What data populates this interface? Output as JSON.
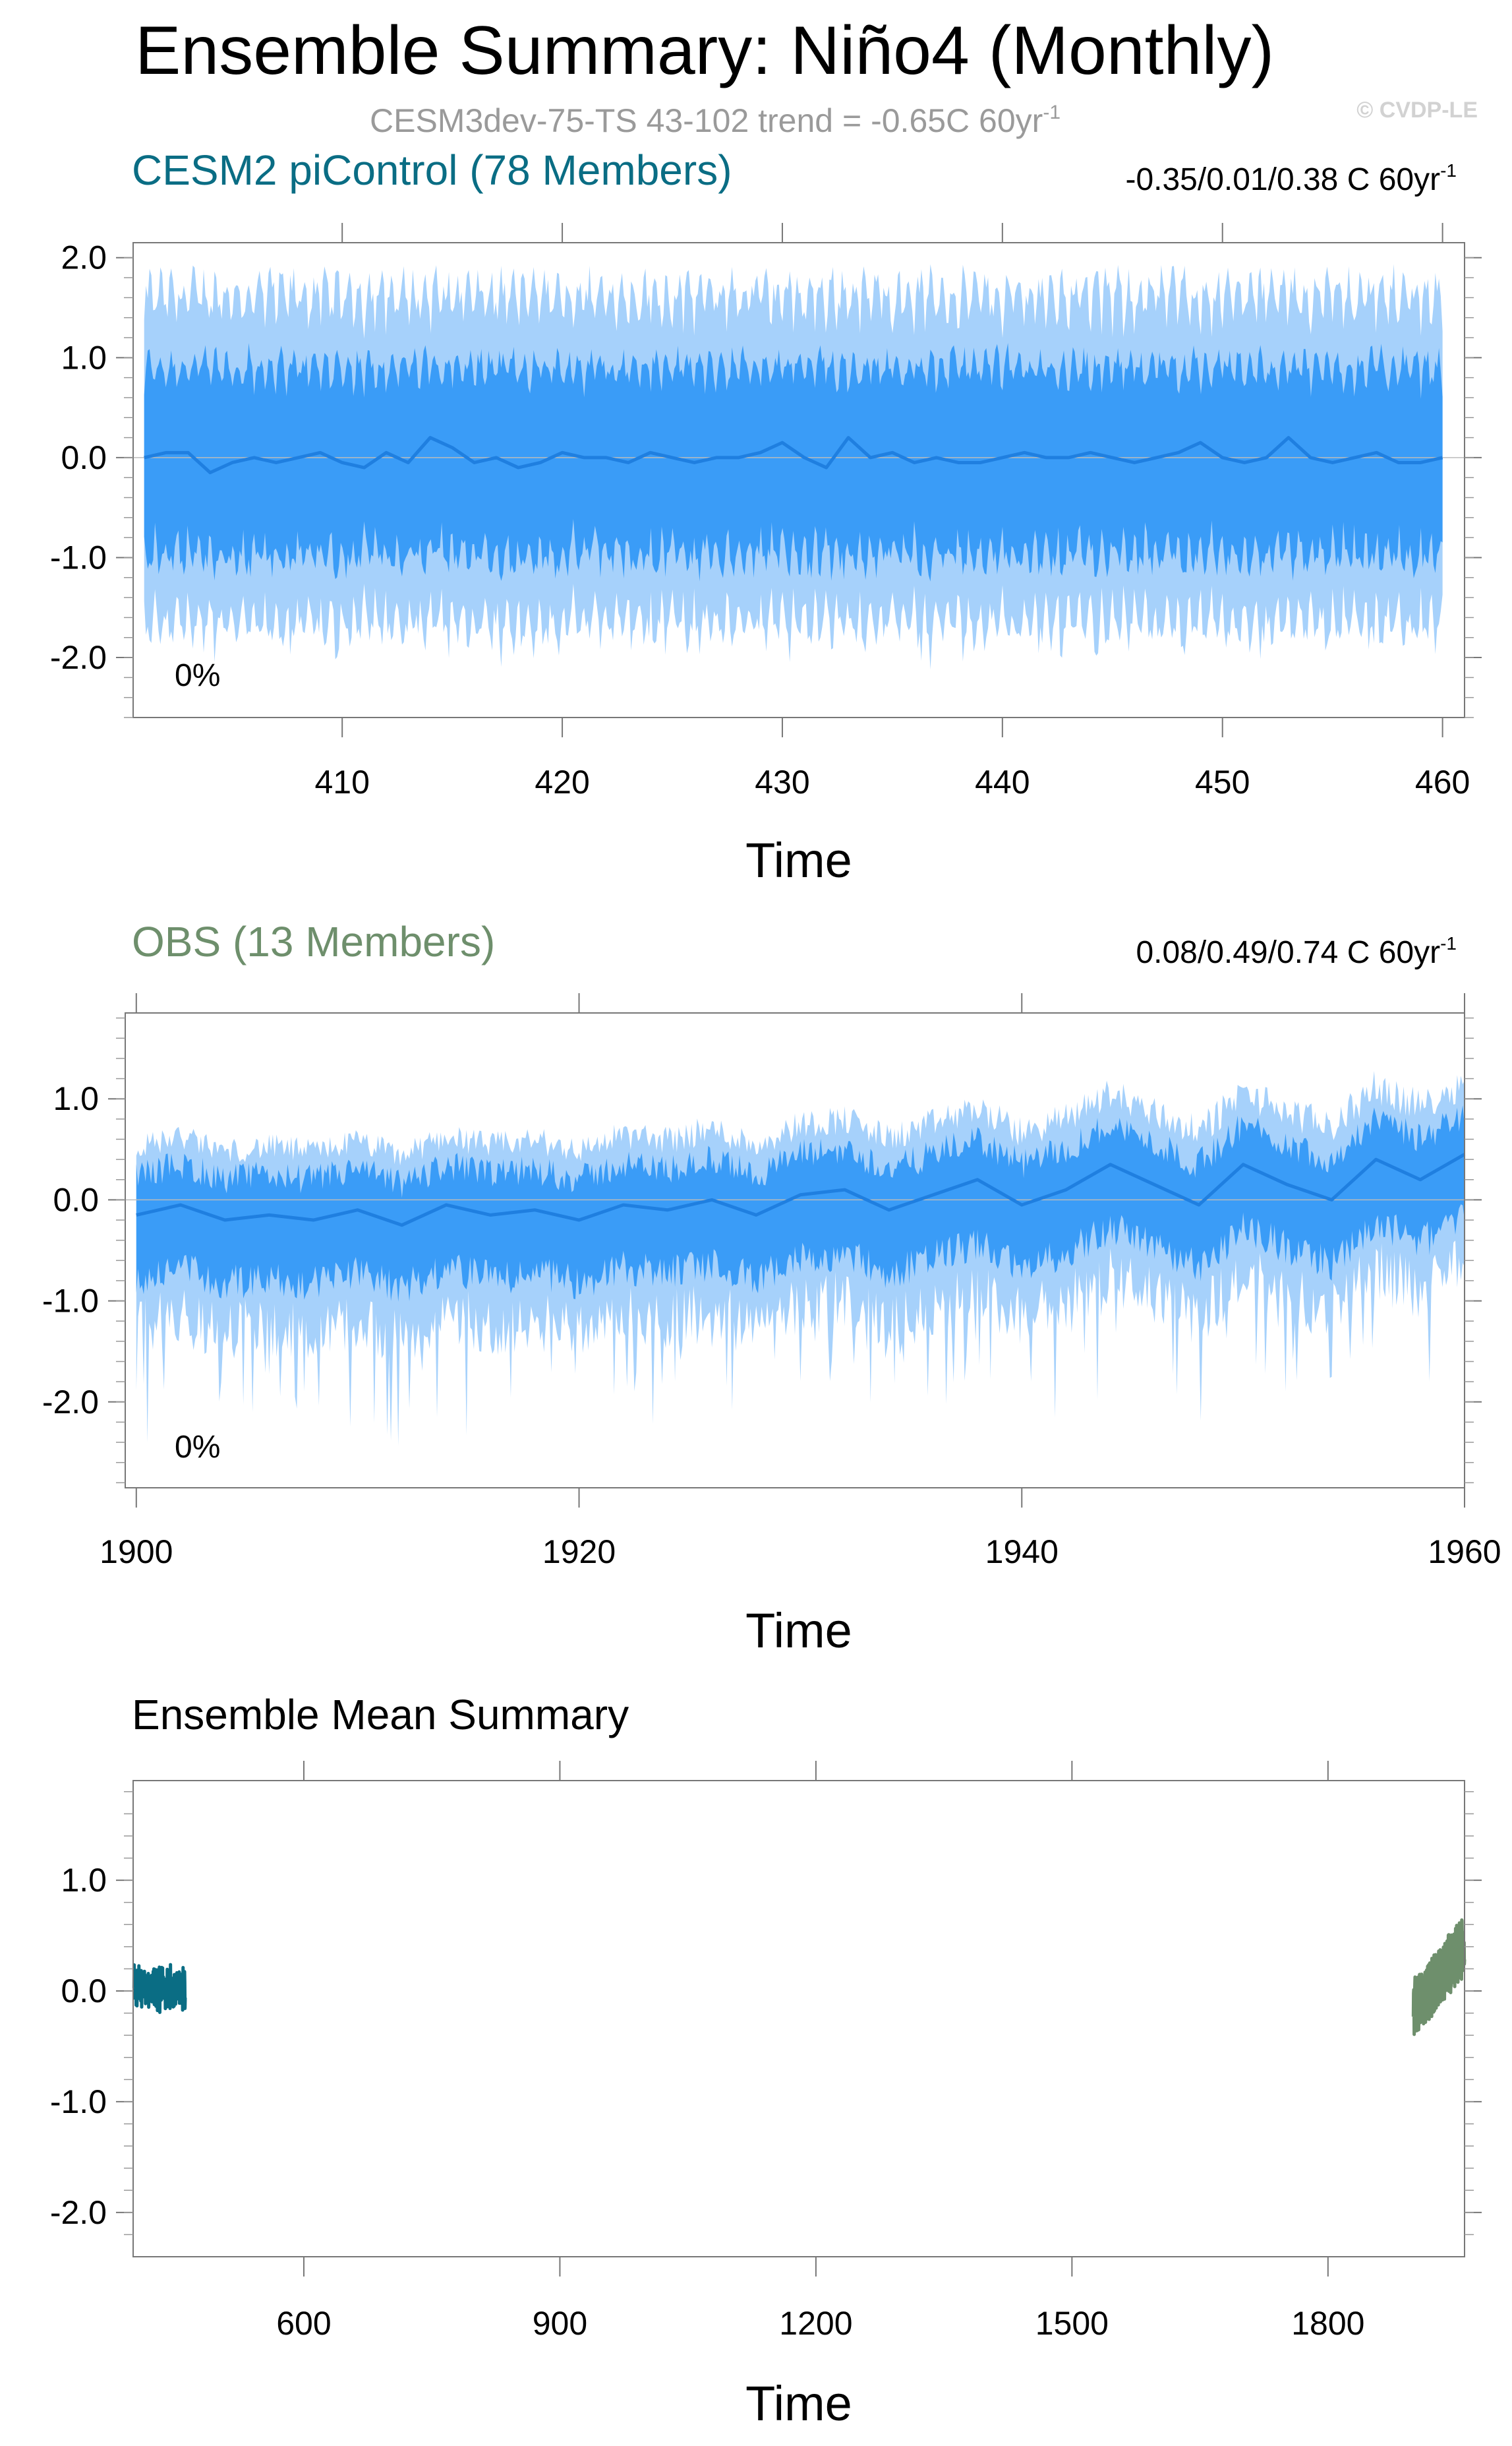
{
  "title": "Ensemble Summary: Niño4 (Monthly)",
  "subtitle": "CESM3dev-75-TS 43-102 trend = -0.65C 60yr",
  "subtitle_sup": "-1",
  "copyright": "© CVDP-LE",
  "colors": {
    "band_outer": "#a6d1fb",
    "band_inner": "#3a9cf7",
    "mean_line": "#1f7fe0",
    "cesm_label": "#0a6d84",
    "obs_label": "#6e8f6c"
  },
  "chart_data": [
    {
      "type": "area",
      "title": "CESM2 piControl (78 Members)",
      "stat_text": "-0.35/0.01/0.38 C 60yr",
      "stat_sup": "-1",
      "percent_label": "0%",
      "xlabel": "Time",
      "xlim": [
        400.5,
        461
      ],
      "ylim": [
        -2.6,
        2.15
      ],
      "xticks": [
        410,
        420,
        430,
        440,
        450,
        460
      ],
      "yticks": [
        2.0,
        1.0,
        0.0,
        -1.0,
        -2.0
      ],
      "ytick_labels": [
        "2.0",
        "1.0",
        "0.0",
        "-1.0",
        "-2.0"
      ],
      "series": [
        {
          "x": [
            401,
            402,
            403,
            404,
            405,
            406,
            407,
            408,
            409,
            410,
            411,
            412,
            413,
            414,
            415,
            416,
            417,
            418,
            419,
            420,
            421,
            422,
            423,
            424,
            425,
            426,
            427,
            428,
            429,
            430,
            431,
            432,
            433,
            434,
            435,
            436,
            437,
            438,
            439,
            440,
            441,
            442,
            443,
            444,
            445,
            446,
            447,
            448,
            449,
            450,
            451,
            452,
            453,
            454,
            455,
            456,
            457,
            458,
            459,
            460
          ],
          "values": [
            0.0,
            0.05,
            0.05,
            -0.15,
            -0.05,
            0.0,
            -0.05,
            0.0,
            0.05,
            -0.05,
            -0.1,
            0.05,
            -0.05,
            0.2,
            0.1,
            -0.05,
            0.0,
            -0.1,
            -0.05,
            0.05,
            0.0,
            0.0,
            -0.05,
            0.05,
            0.0,
            -0.05,
            0.0,
            0.0,
            0.05,
            0.15,
            0.0,
            -0.1,
            0.2,
            0.0,
            0.05,
            -0.05,
            0.0,
            -0.05,
            -0.05,
            0.0,
            0.05,
            0.0,
            0.0,
            0.05,
            0.0,
            -0.05,
            0.0,
            0.05,
            0.15,
            0.0,
            -0.05,
            0.0,
            0.2,
            0.0,
            -0.05,
            0.0,
            0.05,
            -0.05,
            -0.05,
            0.0
          ]
        }
      ]
    },
    {
      "type": "area",
      "title": "OBS (13 Members)",
      "stat_text": "0.08/0.49/0.74 C 60yr",
      "stat_sup": "-1",
      "percent_label": "0%",
      "xlabel": "Time",
      "xlim": [
        1899.5,
        1960
      ],
      "ylim": [
        -2.85,
        1.85
      ],
      "xticks": [
        1900,
        1920,
        1940,
        1960
      ],
      "yticks": [
        1.0,
        0.0,
        -1.0,
        -2.0
      ],
      "ytick_labels": [
        "1.0",
        "0.0",
        "-1.0",
        "-2.0"
      ],
      "series": [
        {
          "x": [
            1900,
            1902,
            1904,
            1906,
            1908,
            1910,
            1912,
            1914,
            1916,
            1918,
            1920,
            1922,
            1924,
            1926,
            1928,
            1930,
            1932,
            1934,
            1936,
            1938,
            1940,
            1942,
            1944,
            1946,
            1948,
            1950,
            1952,
            1954,
            1956,
            1958,
            1960
          ],
          "values": [
            -0.15,
            -0.05,
            -0.2,
            -0.15,
            -0.2,
            -0.1,
            -0.25,
            -0.05,
            -0.15,
            -0.1,
            -0.2,
            -0.05,
            -0.1,
            0.0,
            -0.15,
            0.05,
            0.1,
            -0.1,
            0.05,
            0.2,
            -0.05,
            0.1,
            0.35,
            0.15,
            -0.05,
            0.35,
            0.15,
            0.0,
            0.4,
            0.2,
            0.45
          ]
        }
      ]
    },
    {
      "type": "line",
      "title": "Ensemble Mean Summary",
      "xlabel": "Time",
      "xlim": [
        400,
        1960
      ],
      "ylim": [
        -2.4,
        1.9
      ],
      "xticks": [
        600,
        900,
        1200,
        1500,
        1800
      ],
      "yticks": [
        1.0,
        0.0,
        -1.0,
        -2.0
      ],
      "ytick_labels": [
        "1.0",
        "0.0",
        "-1.0",
        "-2.0"
      ],
      "series": [
        {
          "name": "CESM2 piControl",
          "x_range": [
            401,
            461
          ],
          "y_range": [
            -0.2,
            0.25
          ],
          "color": "#0a6d84"
        },
        {
          "name": "OBS",
          "x_range": [
            1900,
            1960
          ],
          "y_range": [
            -0.45,
            0.7
          ],
          "color": "#6e8f6c"
        }
      ]
    }
  ]
}
